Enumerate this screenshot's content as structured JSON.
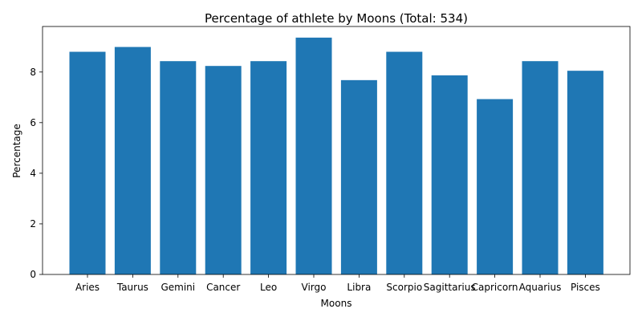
{
  "chart_data": {
    "type": "bar",
    "title": "Percentage of athlete by Moons (Total: 534)",
    "xlabel": "Moons",
    "ylabel": "Percentage",
    "categories": [
      "Aries",
      "Taurus",
      "Gemini",
      "Cancer",
      "Leo",
      "Virgo",
      "Libra",
      "Scorpio",
      "Sagittarius",
      "Capricorn",
      "Aquarius",
      "Pisces"
    ],
    "values": [
      8.8,
      8.99,
      8.43,
      8.24,
      8.43,
      9.36,
      7.68,
      8.8,
      7.87,
      6.93,
      8.43,
      8.05
    ],
    "ylim": [
      0,
      9.8
    ],
    "yticks": [
      0,
      2,
      4,
      6,
      8
    ],
    "bar_color": "#1f77b4",
    "grid": false,
    "legend": "none"
  }
}
